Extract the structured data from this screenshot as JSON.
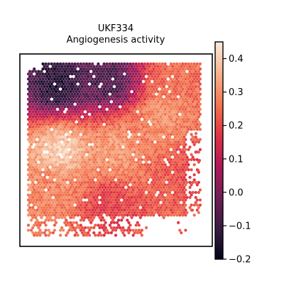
{
  "chart_data": {
    "type": "heatmap",
    "title": "UKF334",
    "subtitle": "Angiogenesis activity",
    "xlabel": "",
    "ylabel": "",
    "grid": false,
    "colormap": "rocket",
    "colorbar": {
      "vmin": -0.2,
      "vmax": 0.45,
      "ticks": [
        0.4,
        0.3,
        0.2,
        0.1,
        0.0,
        -0.1,
        -0.2
      ],
      "tick_labels": [
        "0.4",
        "0.3",
        "0.2",
        "0.1",
        "0.0",
        "−0.1",
        "−0.2"
      ]
    },
    "regions": [
      {
        "area": "top-left",
        "value": -0.12
      },
      {
        "area": "top-center",
        "value": -0.05
      },
      {
        "area": "top-right",
        "value": 0.25
      },
      {
        "area": "upper-middle-right",
        "value": 0.3
      },
      {
        "area": "middle-left",
        "value": 0.4
      },
      {
        "area": "center",
        "value": 0.32
      },
      {
        "area": "lower-left",
        "value": 0.28
      },
      {
        "area": "bottom-center",
        "value": 0.18
      },
      {
        "area": "right-edge",
        "value": 0.2
      }
    ]
  }
}
